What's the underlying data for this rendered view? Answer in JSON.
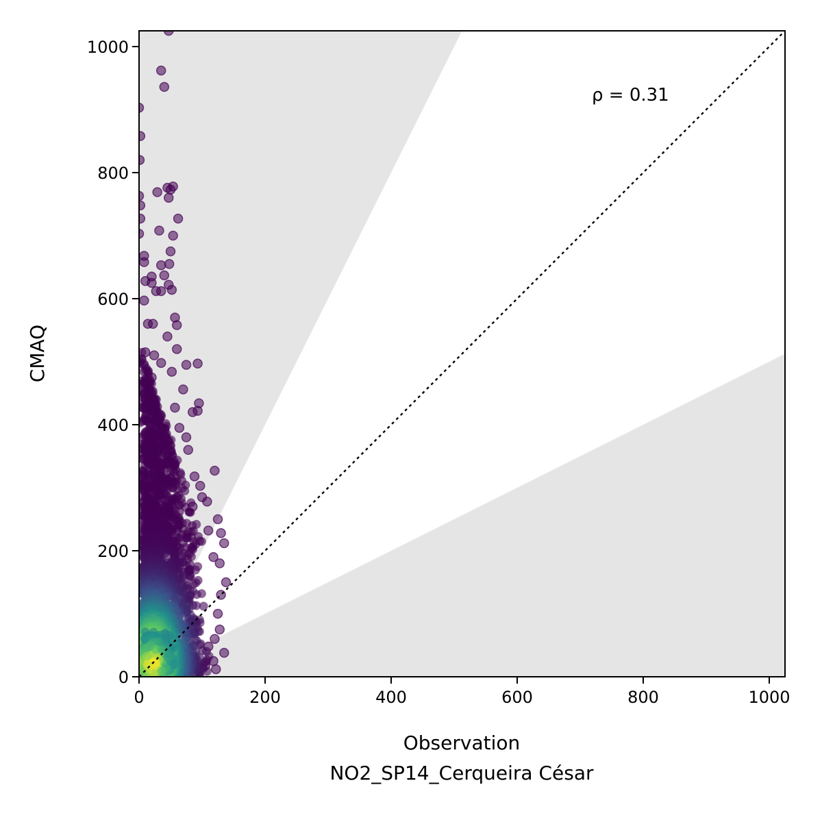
{
  "chart_data": {
    "type": "scatter",
    "title": "",
    "xlabel": "Observation",
    "xlabel_sub": "NO2_SP14_Cerqueira César",
    "ylabel": "CMAQ",
    "xlim": [
      0,
      1025
    ],
    "ylim": [
      0,
      1025
    ],
    "x_ticks": [
      0,
      200,
      400,
      600,
      800,
      1000
    ],
    "y_ticks": [
      0,
      200,
      400,
      600,
      800,
      1000
    ],
    "annotation": "ρ = 0.31",
    "grid": false,
    "reference_line": {
      "type": "1:1",
      "style": "dotted",
      "color": "#000000"
    },
    "bands": [
      {
        "name": "upper factor-of-2",
        "slope": 2,
        "color": "#e5e5e5"
      },
      {
        "name": "lower factor-of-2",
        "slope": 0.5,
        "color": "#e5e5e5"
      }
    ],
    "colormap": "viridis",
    "marker_color_low_density": "#440154",
    "marker_color_high_density": "#fde725",
    "outlier_points": [
      [
        47,
        1025
      ],
      [
        35,
        962
      ],
      [
        40,
        936
      ],
      [
        0,
        903
      ],
      [
        2,
        858
      ],
      [
        1,
        820
      ],
      [
        54,
        778
      ],
      [
        45,
        776
      ],
      [
        50,
        773
      ],
      [
        29,
        769
      ],
      [
        47,
        760
      ],
      [
        0,
        763
      ],
      [
        2,
        748
      ],
      [
        62,
        727
      ],
      [
        2,
        727
      ],
      [
        32,
        708
      ],
      [
        54,
        700
      ],
      [
        0,
        703
      ],
      [
        50,
        675
      ],
      [
        8,
        668
      ],
      [
        8,
        658
      ],
      [
        48,
        655
      ],
      [
        35,
        653
      ],
      [
        20,
        635
      ],
      [
        40,
        637
      ],
      [
        10,
        628
      ],
      [
        20,
        625
      ],
      [
        27,
        612
      ],
      [
        35,
        612
      ],
      [
        52,
        614
      ],
      [
        47,
        622
      ],
      [
        8,
        597
      ],
      [
        57,
        570
      ],
      [
        60,
        558
      ],
      [
        14,
        560
      ],
      [
        22,
        560
      ],
      [
        45,
        540
      ],
      [
        60,
        520
      ],
      [
        10,
        515
      ],
      [
        24,
        510
      ],
      [
        35,
        498
      ],
      [
        93,
        497
      ],
      [
        75,
        495
      ],
      [
        52,
        484
      ],
      [
        70,
        456
      ],
      [
        95,
        434
      ],
      [
        57,
        427
      ],
      [
        85,
        420
      ],
      [
        93,
        422
      ],
      [
        20,
        475
      ],
      [
        15,
        440
      ],
      [
        75,
        380
      ],
      [
        78,
        360
      ],
      [
        64,
        395
      ],
      [
        120,
        327
      ],
      [
        88,
        318
      ],
      [
        97,
        303
      ],
      [
        100,
        285
      ],
      [
        108,
        278
      ],
      [
        85,
        270
      ],
      [
        125,
        250
      ],
      [
        110,
        232
      ],
      [
        130,
        228
      ],
      [
        135,
        212
      ],
      [
        118,
        190
      ],
      [
        128,
        180
      ],
      [
        138,
        150
      ],
      [
        130,
        130
      ],
      [
        125,
        100
      ],
      [
        128,
        75
      ],
      [
        120,
        60
      ],
      [
        135,
        38
      ],
      [
        118,
        25
      ],
      [
        122,
        12
      ],
      [
        105,
        18
      ],
      [
        110,
        48
      ]
    ]
  }
}
